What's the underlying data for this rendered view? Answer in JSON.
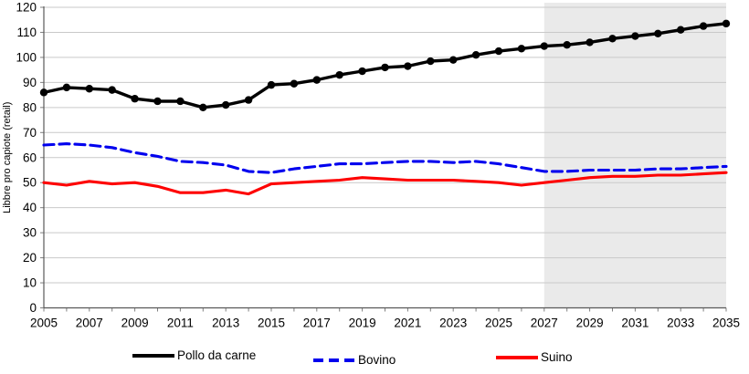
{
  "chart_data": {
    "type": "line",
    "title": "",
    "xlabel": "",
    "ylabel": "Libbre pro capiote (retail)",
    "ylim": [
      0,
      120
    ],
    "ytick_step": 10,
    "xlim": [
      2005,
      2035
    ],
    "xtick_label_step": 2,
    "grid": true,
    "legend_position": "bottom",
    "x": [
      2005,
      2006,
      2007,
      2008,
      2009,
      2010,
      2011,
      2012,
      2013,
      2014,
      2015,
      2016,
      2017,
      2018,
      2019,
      2020,
      2021,
      2022,
      2023,
      2024,
      2025,
      2026,
      2027,
      2028,
      2029,
      2030,
      2031,
      2032,
      2033,
      2034,
      2035
    ],
    "series": [
      {
        "name": "Pollo da carne",
        "color": "#000000",
        "style": "solid",
        "markers": true,
        "values": [
          86,
          88,
          87.5,
          87,
          83.5,
          82.5,
          82.5,
          80,
          81,
          83,
          89,
          89.5,
          91,
          93,
          94.5,
          96,
          96.5,
          98.5,
          99,
          101,
          102.5,
          103.5,
          104.5,
          105,
          106,
          107.5,
          108.5,
          109.5,
          111,
          112.5,
          113.5
        ]
      },
      {
        "name": "Bovino",
        "color": "#0000ee",
        "style": "dashed",
        "markers": false,
        "values": [
          65,
          65.5,
          65,
          64,
          62,
          60.5,
          58.5,
          58,
          57,
          54.5,
          54,
          55.5,
          56.5,
          57.5,
          57.5,
          58,
          58.5,
          58.5,
          58,
          58.5,
          57.5,
          56,
          54.5,
          54.5,
          55,
          55,
          55,
          55.5,
          55.5,
          56,
          56.5
        ]
      },
      {
        "name": "Suino",
        "color": "#fe0000",
        "style": "solid",
        "markers": false,
        "values": [
          50,
          49,
          50.5,
          49.5,
          50,
          48.5,
          46,
          46,
          47,
          45.5,
          49.5,
          50,
          50.5,
          51,
          52,
          51.5,
          51,
          51,
          51,
          50.5,
          50,
          49,
          50,
          51,
          52,
          52.5,
          52.5,
          53,
          53,
          53.5,
          54
        ]
      }
    ],
    "forecast_region": {
      "start": 2027,
      "end": 2035,
      "fill": "#eaeaea"
    },
    "yticks": [
      0,
      10,
      20,
      30,
      40,
      50,
      60,
      70,
      80,
      90,
      100,
      110,
      120
    ],
    "xticks_labeled": [
      2005,
      2007,
      2009,
      2011,
      2013,
      2015,
      2017,
      2019,
      2021,
      2023,
      2025,
      2027,
      2029,
      2031,
      2033,
      2035
    ]
  },
  "style_colors": {
    "gridline": "#c9c9c9",
    "axis_line": "#595959",
    "tick_mark": "#808080",
    "tick_label": "#000000",
    "plot_background": "#ffffff"
  }
}
